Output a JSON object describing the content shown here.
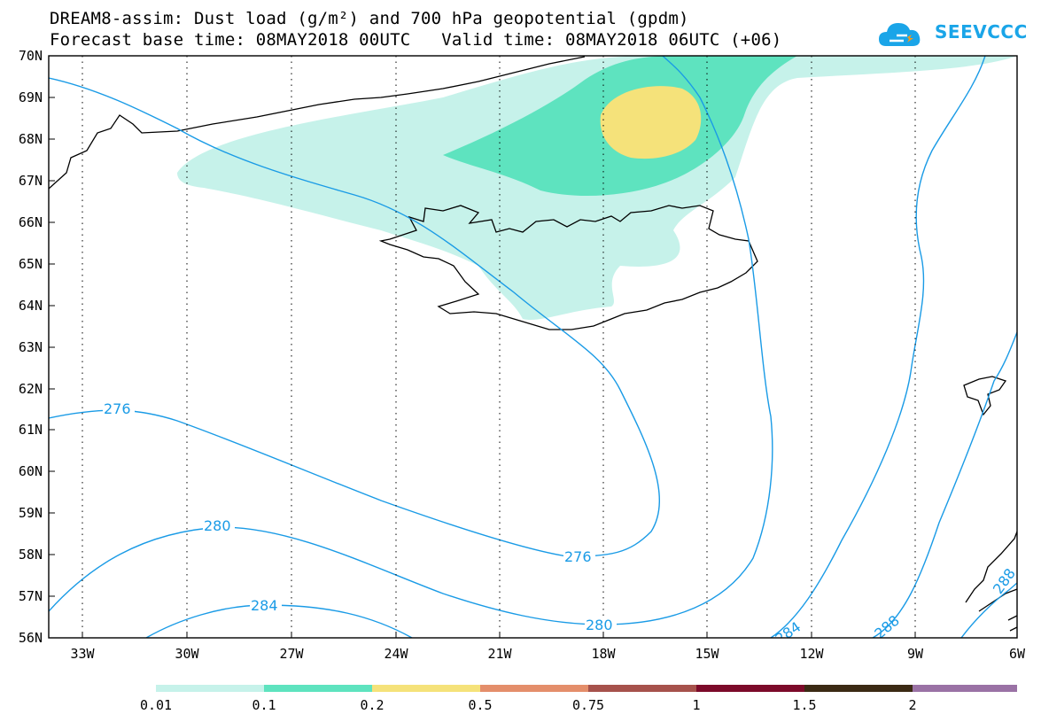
{
  "title": {
    "line1": "DREAM8-assim: Dust load (g/m²) and 700 hPa geopotential (gpdm)",
    "line2": "Forecast base time: 08MAY2018 00UTC   Valid time: 08MAY2018 06UTC (+06)"
  },
  "logo": {
    "text": "SEEVCCC",
    "icon": "cloud-icon",
    "color": "#1aa5e8"
  },
  "axes": {
    "lat_labels": [
      "70N",
      "69N",
      "68N",
      "67N",
      "66N",
      "65N",
      "64N",
      "63N",
      "62N",
      "61N",
      "60N",
      "59N",
      "58N",
      "57N",
      "56N"
    ],
    "lon_labels": [
      "33W",
      "30W",
      "27W",
      "24W",
      "21W",
      "18W",
      "15W",
      "12W",
      "9W",
      "6W"
    ],
    "lat_range": [
      56,
      70
    ],
    "lon_range": [
      -34.2,
      -6
    ],
    "grid": "dotted"
  },
  "colorbar": {
    "labels": [
      "0.01",
      "0.1",
      "0.2",
      "0.5",
      "0.75",
      "1",
      "1.5",
      "2"
    ],
    "colors": [
      "#c6f2ea",
      "#5ee3bf",
      "#f5e27a",
      "#e48e6b",
      "#a6524c",
      "#7c0a2a",
      "#3b2a14",
      "#9a72a5"
    ]
  },
  "contours": {
    "labels": [
      "276",
      "276",
      "280",
      "280",
      "284",
      "284",
      "288",
      "288"
    ],
    "color": "#1a9be6"
  },
  "dust_levels": {
    "outer": "#c6f2ea",
    "middle": "#5ee3bf",
    "core": "#f5e27a"
  }
}
